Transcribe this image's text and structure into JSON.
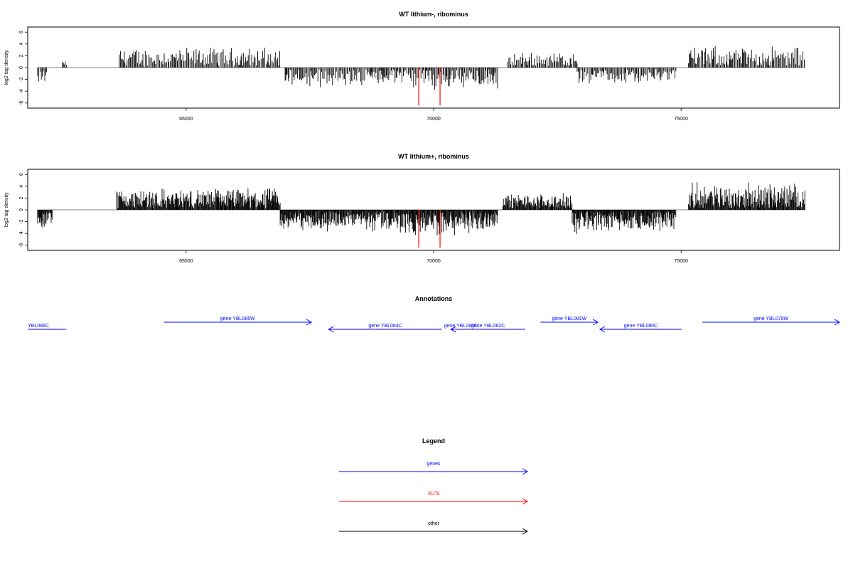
{
  "colors": {
    "gene": "#0000ff",
    "xut": "#ff0000",
    "other": "#000000",
    "axis": "#000000",
    "bar": "#000000"
  },
  "chart_data": [
    {
      "type": "bar",
      "title": "WT lithium-, ribominus",
      "xlabel": "",
      "ylabel": "log2 tag density",
      "xlim": [
        61800,
        78200
      ],
      "ylim": [
        -6.5,
        6.5
      ],
      "xticks": [
        65000,
        70000,
        75000
      ],
      "yticks": [
        -6,
        -4,
        -2,
        0,
        2,
        4,
        6
      ],
      "density": "sparse",
      "segments": [
        {
          "range": [
            62000,
            62200
          ],
          "sign": -1,
          "amp": 2.4
        },
        {
          "range": [
            62500,
            62600
          ],
          "sign": 1,
          "amp": 1.0
        },
        {
          "range": [
            63650,
            66900
          ],
          "sign": 1,
          "amp": 3.4
        },
        {
          "range": [
            67000,
            69300
          ],
          "sign": -1,
          "amp": 3.2
        },
        {
          "range": [
            69300,
            71300
          ],
          "sign": -1,
          "amp": 3.6
        },
        {
          "range": [
            71500,
            72900
          ],
          "sign": 1,
          "amp": 2.6
        },
        {
          "range": [
            72900,
            74900
          ],
          "sign": -1,
          "amp": 2.8
        },
        {
          "range": [
            75150,
            77500
          ],
          "sign": 1,
          "amp": 3.6
        }
      ],
      "highlights": [
        {
          "x": 69700,
          "y": -6.4,
          "color": "#ff0000"
        },
        {
          "x": 70130,
          "y": -6.4,
          "color": "#ff0000"
        }
      ]
    },
    {
      "type": "bar",
      "title": "WT lithium+, ribominus",
      "xlabel": "",
      "ylabel": "log2 tag density",
      "xlim": [
        61800,
        78200
      ],
      "ylim": [
        -6.5,
        6.5
      ],
      "xticks": [
        65000,
        70000,
        75000
      ],
      "yticks": [
        -6,
        -4,
        -2,
        0,
        2,
        4,
        6
      ],
      "density": "dense",
      "segments": [
        {
          "range": [
            62000,
            62300
          ],
          "sign": -1,
          "amp": 3.4
        },
        {
          "range": [
            63600,
            66900
          ],
          "sign": 1,
          "amp": 3.6
        },
        {
          "range": [
            66900,
            69300
          ],
          "sign": -1,
          "amp": 3.8
        },
        {
          "range": [
            69300,
            71300
          ],
          "sign": -1,
          "amp": 4.4
        },
        {
          "range": [
            71400,
            72800
          ],
          "sign": 1,
          "amp": 2.6
        },
        {
          "range": [
            72800,
            74900
          ],
          "sign": -1,
          "amp": 4.0
        },
        {
          "range": [
            75150,
            77500
          ],
          "sign": 1,
          "amp": 4.6
        }
      ],
      "highlights": [
        {
          "x": 69700,
          "y": -6.4,
          "color": "#ff0000"
        },
        {
          "x": 70130,
          "y": -6.4,
          "color": "#ff0000"
        }
      ]
    }
  ],
  "annotations": {
    "title": "Annotations",
    "xlim": [
      61800,
      78200
    ],
    "genes": [
      {
        "label": "YBL086C",
        "start": 61800,
        "end": 62580,
        "strand": "-",
        "row": 1,
        "clip_left": true
      },
      {
        "label": "gene YBL085W",
        "start": 64550,
        "end": 67530,
        "strand": "+",
        "row": 0
      },
      {
        "label": "gene YBL084C",
        "start": 67880,
        "end": 70170,
        "strand": "-",
        "row": 1
      },
      {
        "label": "gene YBL083C",
        "start": 70350,
        "end": 70750,
        "strand": "-",
        "row": 1
      },
      {
        "label": "gene YBL082C",
        "start": 70350,
        "end": 71850,
        "strand": "-",
        "row": 1
      },
      {
        "label": "gene YBL081W",
        "start": 72160,
        "end": 73320,
        "strand": "+",
        "row": 0
      },
      {
        "label": "gene YBL080C",
        "start": 73360,
        "end": 75010,
        "strand": "-",
        "row": 1
      },
      {
        "label": "gene YBL079W",
        "start": 75430,
        "end": 78200,
        "strand": "+",
        "row": 0
      }
    ]
  },
  "legend": {
    "title": "Legend",
    "items": [
      {
        "label": "genes",
        "color": "#0000ff"
      },
      {
        "label": "XUTs",
        "color": "#ff0000"
      },
      {
        "label": "other",
        "color": "#000000"
      }
    ]
  }
}
